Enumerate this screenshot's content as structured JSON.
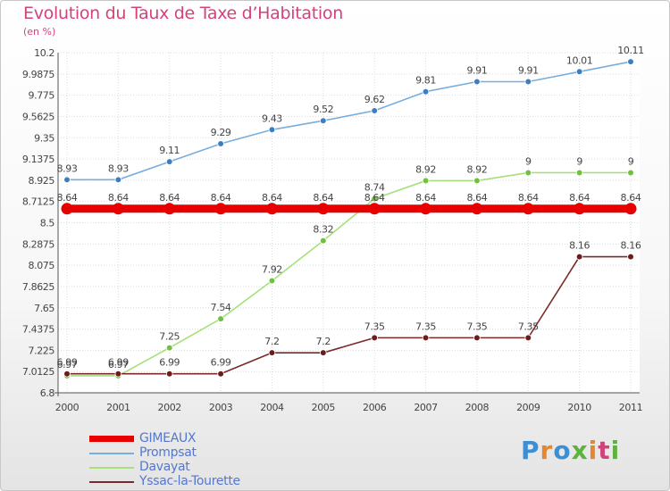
{
  "header": {
    "title": "Evolution du Taux de Taxe d’Habitation",
    "subtitle": "(en %)"
  },
  "logo": {
    "text": "Proxiti",
    "colors": [
      "#3a8fd6",
      "#e8862a",
      "#3a8fd6",
      "#5cb43c",
      "#e8862a",
      "#d2437c",
      "#5cb43c"
    ]
  },
  "chart_data": {
    "type": "line",
    "title": "Evolution du Taux de Taxe d’Habitation",
    "subtitle": "(en %)",
    "xlabel": "",
    "ylabel": "",
    "x": [
      "2000",
      "2001",
      "2002",
      "2003",
      "2004",
      "2005",
      "2006",
      "2007",
      "2008",
      "2009",
      "2010",
      "2011"
    ],
    "ylim": [
      6.8,
      10.2
    ],
    "yticks": [
      "6.8",
      "7.0125",
      "7.225",
      "7.4375",
      "7.65",
      "7.8625",
      "8.075",
      "8.2875",
      "8.5",
      "8.7125",
      "8.925",
      "9.1375",
      "9.35",
      "9.5625",
      "9.775",
      "9.9875",
      "10.2"
    ],
    "grid": true,
    "legend_position": "bottom-left",
    "series": [
      {
        "name": "GIMEAUX",
        "color": "#e80000",
        "marker_color": "#e80000",
        "values": [
          8.64,
          8.64,
          8.64,
          8.64,
          8.64,
          8.64,
          8.64,
          8.64,
          8.64,
          8.64,
          8.64,
          8.64
        ],
        "labels": [
          "8.64",
          "8.64",
          "8.64",
          "8.64",
          "8.64",
          "8.64",
          "8.64",
          "8.64",
          "8.64",
          "8.64",
          "8.64",
          "8.64"
        ]
      },
      {
        "name": "Prompsat",
        "color": "#78aede",
        "marker_color": "#3a7fc4",
        "values": [
          8.93,
          8.93,
          9.11,
          9.29,
          9.43,
          9.52,
          9.62,
          9.81,
          9.91,
          9.91,
          10.01,
          10.11
        ],
        "labels": [
          "8.93",
          "8.93",
          "9.11",
          "9.29",
          "9.43",
          "9.52",
          "9.62",
          "9.81",
          "9.91",
          "9.91",
          "10.01",
          "10.11"
        ]
      },
      {
        "name": "Davayat",
        "color": "#a6e07a",
        "marker_color": "#6fc23a",
        "values": [
          6.97,
          6.97,
          7.25,
          7.54,
          7.92,
          8.32,
          8.74,
          8.92,
          8.92,
          9,
          9,
          9
        ],
        "labels": [
          "6.97",
          "6.97",
          "7.25",
          "7.54",
          "7.92",
          "8.32",
          "8.74",
          "8.92",
          "8.92",
          "9",
          "9",
          "9"
        ]
      },
      {
        "name": "Yssac-la-Tourette",
        "color": "#7a2a2a",
        "marker_color": "#6b1c1c",
        "values": [
          6.99,
          6.99,
          6.99,
          6.99,
          7.2,
          7.2,
          7.35,
          7.35,
          7.35,
          7.35,
          8.16,
          8.16
        ],
        "labels": [
          "6.99",
          "6.99",
          "6.99",
          "6.99",
          "7.2",
          "7.2",
          "7.35",
          "7.35",
          "7.35",
          "7.35",
          "8.16",
          "8.16"
        ]
      }
    ]
  }
}
